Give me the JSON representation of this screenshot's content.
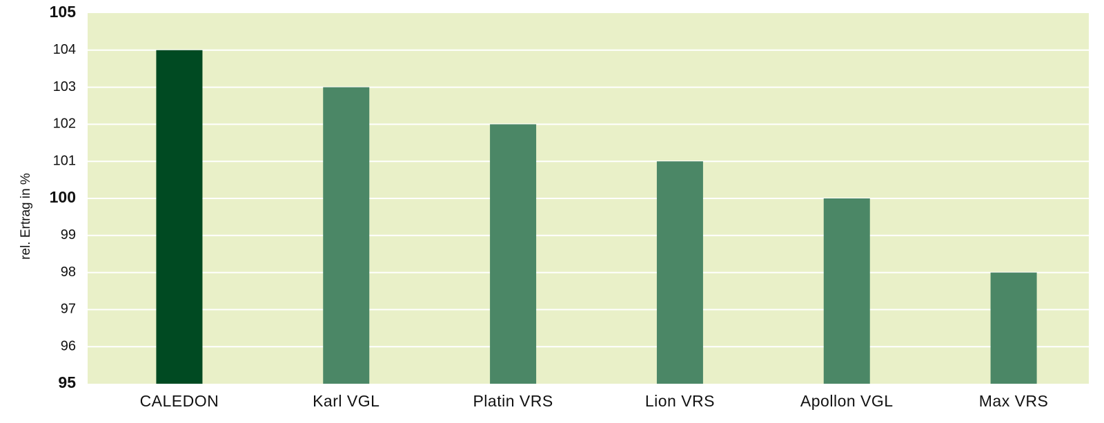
{
  "chart_data": {
    "type": "bar",
    "categories": [
      "CALEDON",
      "Karl VGL",
      "Platin VRS",
      "Lion VRS",
      "Apollon VGL",
      "Max VRS"
    ],
    "values": [
      104,
      103,
      102,
      101,
      100,
      98
    ],
    "title": "",
    "xlabel": "",
    "ylabel": "rel. Ertrag in %",
    "ylim": [
      95,
      105
    ],
    "yticks": [
      "95",
      "96",
      "97",
      "98",
      "99",
      "100",
      "101",
      "102",
      "103",
      "104",
      "105"
    ],
    "bold_ticks": [
      "95",
      "100",
      "105"
    ],
    "grid": true,
    "colors": {
      "plot_background": "#e9f0c8",
      "gridline": "#ffffff",
      "highlight_bar": "#004a22",
      "bar": "#4b8766"
    },
    "highlight_index": 0
  }
}
